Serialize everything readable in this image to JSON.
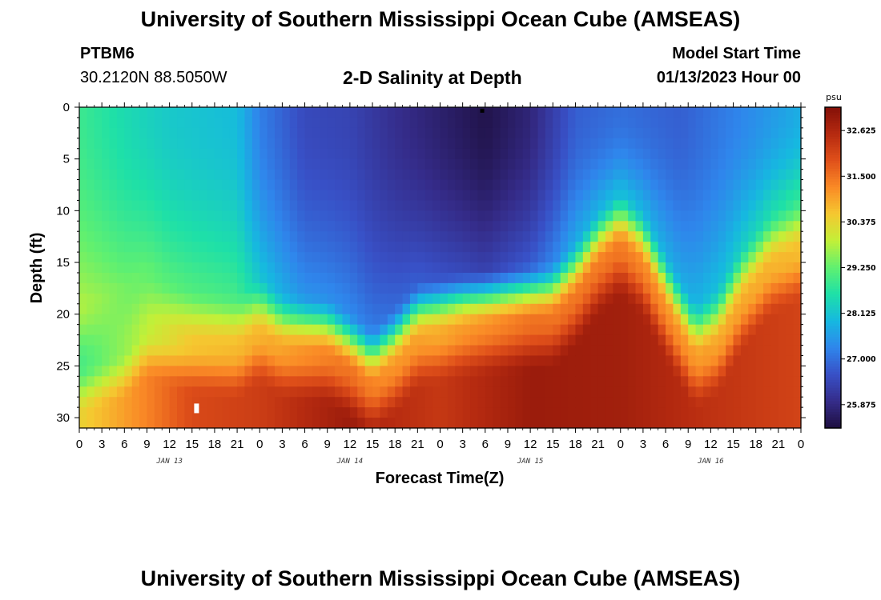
{
  "header": {
    "title": "University of Southern Mississippi Ocean Cube (AMSEAS)",
    "station": "PTBM6",
    "coords": "30.2120N  88.5050W",
    "plot_title": "2-D Salinity at Depth",
    "start_label": "Model Start Time",
    "start_value": "01/13/2023 Hour 00"
  },
  "footer": {
    "title": "University of Southern Mississippi Ocean Cube (AMSEAS)"
  },
  "chart_data": {
    "type": "heatmap",
    "title": "2-D Salinity at Depth",
    "xlabel": "Forecast Time(Z)",
    "ylabel": "Depth (ft)",
    "x_range_hours": [
      0,
      96
    ],
    "y_range_ft": [
      0,
      31
    ],
    "x_tick_labels": [
      "0",
      "3",
      "6",
      "9",
      "12",
      "15",
      "18",
      "21",
      "0",
      "3",
      "6",
      "9",
      "12",
      "15",
      "18",
      "21",
      "0",
      "3",
      "6",
      "9",
      "12",
      "15",
      "18",
      "21",
      "0",
      "3",
      "6",
      "9",
      "12",
      "15",
      "18",
      "21",
      "0"
    ],
    "y_ticks": [
      0,
      5,
      10,
      15,
      20,
      25,
      30
    ],
    "day_labels": [
      {
        "text": "JAN 13",
        "hour": 12
      },
      {
        "text": "JAN 14",
        "hour": 36
      },
      {
        "text": "JAN 15",
        "hour": 60
      },
      {
        "text": "JAN 16",
        "hour": 84
      }
    ],
    "colorbar": {
      "unit": "psu",
      "min": 25.3,
      "max": 33.2,
      "ticks": [
        32.625,
        31.5,
        30.375,
        29.25,
        28.125,
        27.0,
        25.875
      ],
      "tick_labels": [
        "32.625",
        "31.500",
        "30.375",
        "29.250",
        "28.125",
        "27.000",
        "25.875"
      ],
      "colors": [
        "#1e0f40",
        "#352c8a",
        "#3850c6",
        "#2f86ec",
        "#16b8e0",
        "#1ee0a8",
        "#60f070",
        "#c2f038",
        "#f5c830",
        "#fa8a26",
        "#e0501a",
        "#b52a10",
        "#841008"
      ]
    },
    "halocline_depth_ft_by_hour": [
      [
        0,
        21.0
      ],
      [
        6,
        19.5
      ],
      [
        9,
        17.5
      ],
      [
        15,
        19.0
      ],
      [
        21,
        19.5
      ],
      [
        24,
        18.0
      ],
      [
        27,
        19.5
      ],
      [
        33,
        20.0
      ],
      [
        36,
        21.5
      ],
      [
        39,
        23.0
      ],
      [
        42,
        21.0
      ],
      [
        45,
        18.5
      ],
      [
        51,
        17.5
      ],
      [
        57,
        17.0
      ],
      [
        63,
        16.5
      ],
      [
        66,
        14.5
      ],
      [
        69,
        11.5
      ],
      [
        72,
        9.5
      ],
      [
        75,
        11.5
      ],
      [
        79,
        17.0
      ],
      [
        82,
        20.5
      ],
      [
        85,
        19.0
      ],
      [
        88,
        15.0
      ],
      [
        92,
        11.5
      ],
      [
        96,
        10.0
      ]
    ],
    "surface_salinity_by_hour": [
      [
        0,
        28.9
      ],
      [
        6,
        28.5
      ],
      [
        12,
        28.2
      ],
      [
        21,
        28.0
      ],
      [
        24,
        27.2
      ],
      [
        30,
        26.5
      ],
      [
        36,
        26.4
      ],
      [
        42,
        26.0
      ],
      [
        48,
        25.7
      ],
      [
        54,
        25.4
      ],
      [
        60,
        25.8
      ],
      [
        66,
        26.8
      ],
      [
        72,
        27.0
      ],
      [
        80,
        26.8
      ],
      [
        90,
        27.4
      ],
      [
        96,
        27.8
      ]
    ],
    "bottom_salinity_by_hour": [
      [
        0,
        30.4
      ],
      [
        9,
        31.3
      ],
      [
        15,
        32.0
      ],
      [
        24,
        32.2
      ],
      [
        36,
        32.9
      ],
      [
        42,
        32.5
      ],
      [
        48,
        32.3
      ],
      [
        60,
        32.9
      ],
      [
        72,
        32.8
      ],
      [
        84,
        32.4
      ],
      [
        96,
        32.1
      ]
    ]
  }
}
